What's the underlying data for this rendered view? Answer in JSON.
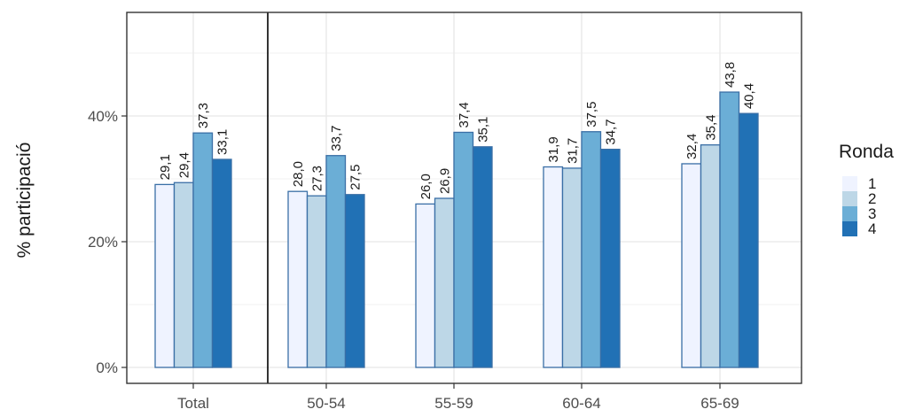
{
  "chart_data": {
    "type": "bar",
    "title": "",
    "xlabel": "",
    "ylabel": "% participació",
    "ylim": [
      0,
      56
    ],
    "y_ticks": [
      {
        "value": 0,
        "label": "0%"
      },
      {
        "value": 20,
        "label": "20%"
      },
      {
        "value": 40,
        "label": "40%"
      }
    ],
    "grid": true,
    "legend_position": "right",
    "legend_title": "Ronda",
    "categories": [
      "Total",
      "50-54",
      "55-59",
      "60-64",
      "65-69"
    ],
    "separator_after_category": "Total",
    "series": [
      {
        "name": "1",
        "color": "#eff3ff",
        "values": [
          29.1,
          28.0,
          26.0,
          31.9,
          32.4
        ],
        "labels": [
          "29,1",
          "28,0",
          "26,0",
          "31,9",
          "32,4"
        ]
      },
      {
        "name": "2",
        "color": "#bdd7e7",
        "values": [
          29.4,
          27.3,
          26.9,
          31.7,
          35.4
        ],
        "labels": [
          "29,4",
          "27,3",
          "26,9",
          "31,7",
          "35,4"
        ]
      },
      {
        "name": "3",
        "color": "#6baed6",
        "values": [
          37.3,
          33.7,
          37.4,
          37.5,
          43.8
        ],
        "labels": [
          "37,3",
          "33,7",
          "37,4",
          "37,5",
          "43,8"
        ]
      },
      {
        "name": "4",
        "color": "#2171b5",
        "values": [
          33.1,
          27.5,
          35.1,
          34.7,
          40.4
        ],
        "labels": [
          "33,1",
          "27,5",
          "35,1",
          "34,7",
          "40,4"
        ]
      }
    ],
    "bar_outline_color": "#3a6fa6",
    "panel_border_color": "#333333",
    "grid_color": "#ebebeb"
  }
}
